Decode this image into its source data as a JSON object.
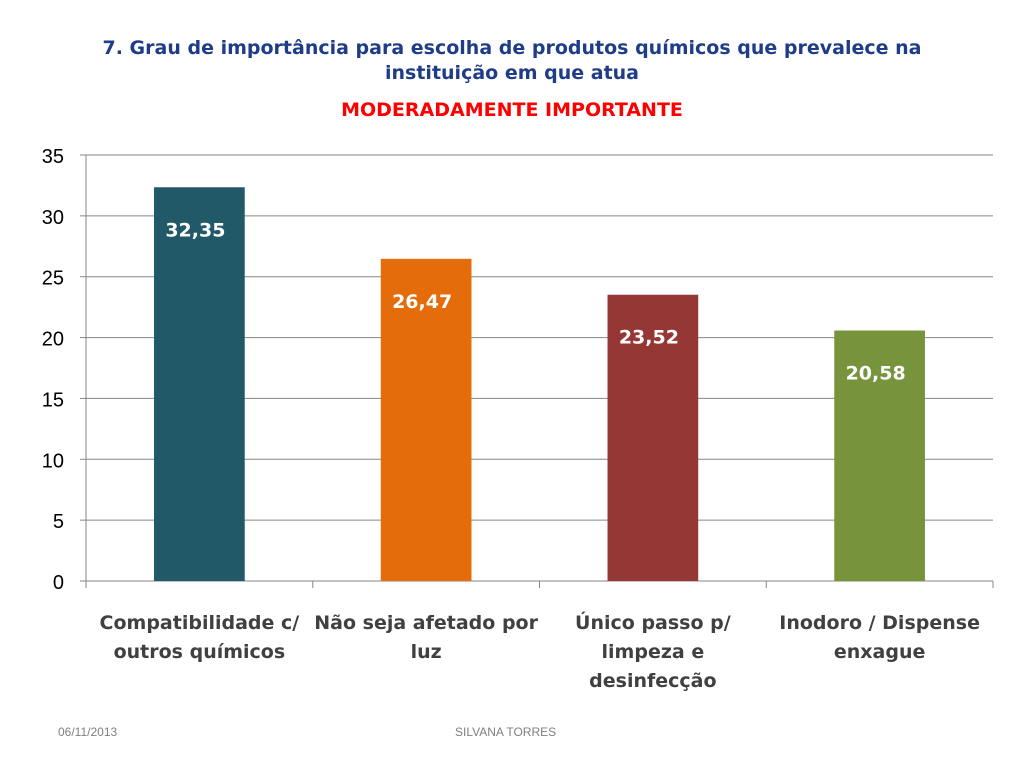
{
  "slide": {
    "title_lines": [
      "7. Grau de importância para escolha de produtos químicos que prevalece na",
      "instituição em que atua"
    ],
    "subtitle": "MODERADAMENTE  IMPORTANTE",
    "title_color": "#1f3c88",
    "subtitle_color": "#ff0000"
  },
  "footer": {
    "date": "06/11/2013",
    "author": "SILVANA TORRES"
  },
  "chart_data": {
    "type": "bar",
    "categories": [
      [
        "Compatibilidade c/",
        "outros químicos"
      ],
      [
        "Não seja afetado por",
        "luz"
      ],
      [
        "Único passo p/",
        "limpeza e",
        "desinfecção"
      ],
      [
        "Inodoro / Dispense",
        "enxague"
      ]
    ],
    "values": [
      32.35,
      26.47,
      23.52,
      20.58
    ],
    "data_labels": [
      "32,35",
      "26,47",
      "23,52",
      "20,58"
    ],
    "colors": [
      "#215968",
      "#e46c0a",
      "#953735",
      "#77933c"
    ],
    "ylim": [
      0,
      35
    ],
    "yticks": [
      0,
      5,
      10,
      15,
      20,
      25,
      30,
      35
    ],
    "grid": true,
    "legend": "none",
    "xlabel": "",
    "ylabel": ""
  }
}
